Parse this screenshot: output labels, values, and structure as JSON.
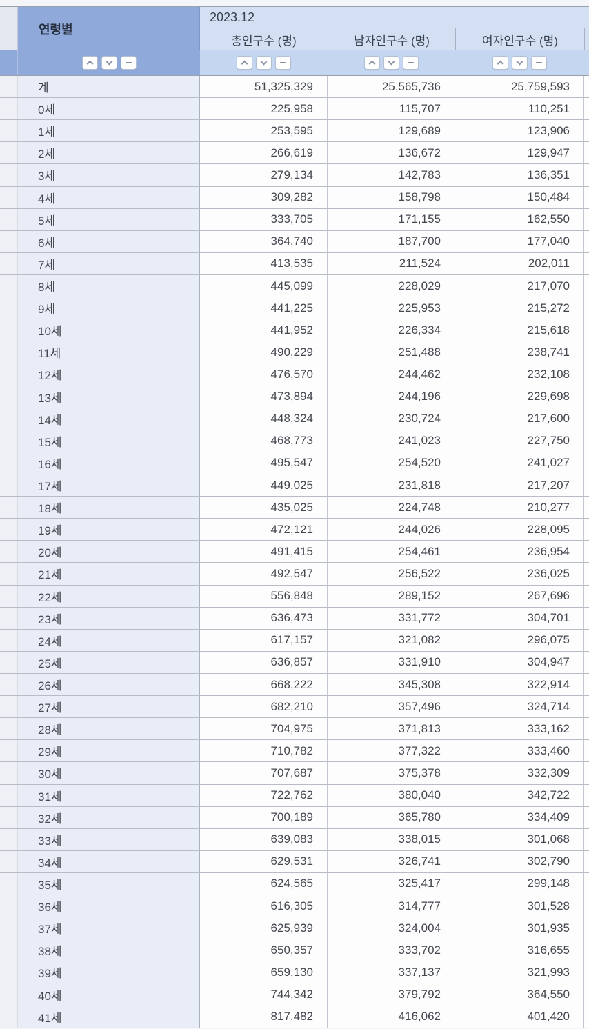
{
  "table": {
    "age_column_header": "연령별",
    "period_header": "2023.12",
    "value_column_headers": [
      "총인구수 (명)",
      "남자인구수 (명)",
      "여자인구수 (명)"
    ],
    "sort_controls": {
      "ascending_icon": "chevron-up",
      "descending_icon": "chevron-down",
      "clear_icon": "minus"
    },
    "rows": [
      {
        "label": "계",
        "total": "51,325,329",
        "male": "25,565,736",
        "female": "25,759,593"
      },
      {
        "label": "0세",
        "total": "225,958",
        "male": "115,707",
        "female": "110,251"
      },
      {
        "label": "1세",
        "total": "253,595",
        "male": "129,689",
        "female": "123,906"
      },
      {
        "label": "2세",
        "total": "266,619",
        "male": "136,672",
        "female": "129,947"
      },
      {
        "label": "3세",
        "total": "279,134",
        "male": "142,783",
        "female": "136,351"
      },
      {
        "label": "4세",
        "total": "309,282",
        "male": "158,798",
        "female": "150,484"
      },
      {
        "label": "5세",
        "total": "333,705",
        "male": "171,155",
        "female": "162,550"
      },
      {
        "label": "6세",
        "total": "364,740",
        "male": "187,700",
        "female": "177,040"
      },
      {
        "label": "7세",
        "total": "413,535",
        "male": "211,524",
        "female": "202,011"
      },
      {
        "label": "8세",
        "total": "445,099",
        "male": "228,029",
        "female": "217,070"
      },
      {
        "label": "9세",
        "total": "441,225",
        "male": "225,953",
        "female": "215,272"
      },
      {
        "label": "10세",
        "total": "441,952",
        "male": "226,334",
        "female": "215,618"
      },
      {
        "label": "11세",
        "total": "490,229",
        "male": "251,488",
        "female": "238,741"
      },
      {
        "label": "12세",
        "total": "476,570",
        "male": "244,462",
        "female": "232,108"
      },
      {
        "label": "13세",
        "total": "473,894",
        "male": "244,196",
        "female": "229,698"
      },
      {
        "label": "14세",
        "total": "448,324",
        "male": "230,724",
        "female": "217,600"
      },
      {
        "label": "15세",
        "total": "468,773",
        "male": "241,023",
        "female": "227,750"
      },
      {
        "label": "16세",
        "total": "495,547",
        "male": "254,520",
        "female": "241,027"
      },
      {
        "label": "17세",
        "total": "449,025",
        "male": "231,818",
        "female": "217,207"
      },
      {
        "label": "18세",
        "total": "435,025",
        "male": "224,748",
        "female": "210,277"
      },
      {
        "label": "19세",
        "total": "472,121",
        "male": "244,026",
        "female": "228,095"
      },
      {
        "label": "20세",
        "total": "491,415",
        "male": "254,461",
        "female": "236,954"
      },
      {
        "label": "21세",
        "total": "492,547",
        "male": "256,522",
        "female": "236,025"
      },
      {
        "label": "22세",
        "total": "556,848",
        "male": "289,152",
        "female": "267,696"
      },
      {
        "label": "23세",
        "total": "636,473",
        "male": "331,772",
        "female": "304,701"
      },
      {
        "label": "24세",
        "total": "617,157",
        "male": "321,082",
        "female": "296,075"
      },
      {
        "label": "25세",
        "total": "636,857",
        "male": "331,910",
        "female": "304,947"
      },
      {
        "label": "26세",
        "total": "668,222",
        "male": "345,308",
        "female": "322,914"
      },
      {
        "label": "27세",
        "total": "682,210",
        "male": "357,496",
        "female": "324,714"
      },
      {
        "label": "28세",
        "total": "704,975",
        "male": "371,813",
        "female": "333,162"
      },
      {
        "label": "29세",
        "total": "710,782",
        "male": "377,322",
        "female": "333,460"
      },
      {
        "label": "30세",
        "total": "707,687",
        "male": "375,378",
        "female": "332,309"
      },
      {
        "label": "31세",
        "total": "722,762",
        "male": "380,040",
        "female": "342,722"
      },
      {
        "label": "32세",
        "total": "700,189",
        "male": "365,780",
        "female": "334,409"
      },
      {
        "label": "33세",
        "total": "639,083",
        "male": "338,015",
        "female": "301,068"
      },
      {
        "label": "34세",
        "total": "629,531",
        "male": "326,741",
        "female": "302,790"
      },
      {
        "label": "35세",
        "total": "624,565",
        "male": "325,417",
        "female": "299,148"
      },
      {
        "label": "36세",
        "total": "616,305",
        "male": "314,777",
        "female": "301,528"
      },
      {
        "label": "37세",
        "total": "625,939",
        "male": "324,004",
        "female": "301,935"
      },
      {
        "label": "38세",
        "total": "650,357",
        "male": "333,702",
        "female": "316,655"
      },
      {
        "label": "39세",
        "total": "659,130",
        "male": "337,137",
        "female": "321,993"
      },
      {
        "label": "40세",
        "total": "744,342",
        "male": "379,792",
        "female": "364,550"
      },
      {
        "label": "41세",
        "total": "817,482",
        "male": "416,062",
        "female": "401,420"
      }
    ]
  },
  "colors": {
    "header_blue": "#8ea9da",
    "header_light_blue": "#d3e0f4",
    "sort_row_blue": "#c4d6f0",
    "label_cell_bg": "#e9edf8",
    "page_bg": "#f3f5f9"
  }
}
